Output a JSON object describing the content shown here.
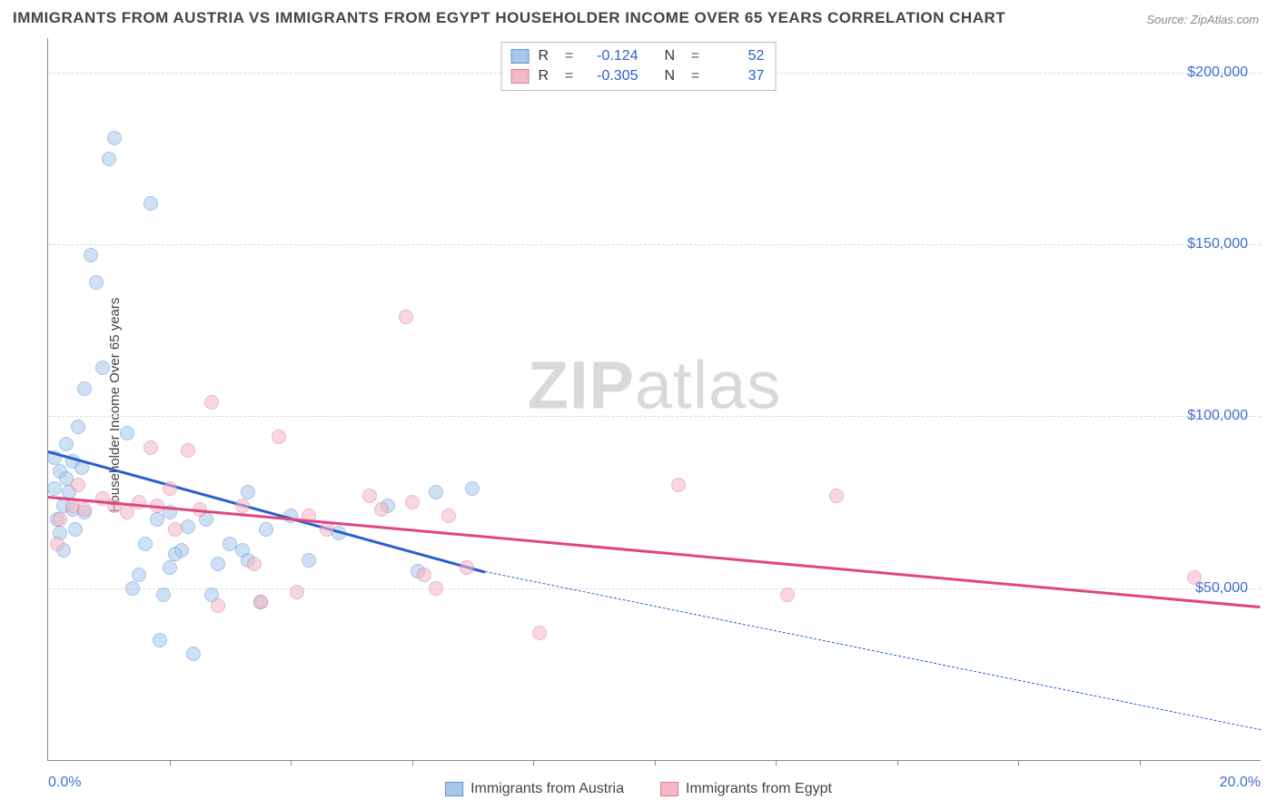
{
  "title": "IMMIGRANTS FROM AUSTRIA VS IMMIGRANTS FROM EGYPT HOUSEHOLDER INCOME OVER 65 YEARS CORRELATION CHART",
  "source": "Source: ZipAtlas.com",
  "watermark_a": "ZIP",
  "watermark_b": "atlas",
  "y_axis_label": "Householder Income Over 65 years",
  "chart": {
    "type": "scatter",
    "xlim": [
      0,
      20
    ],
    "ylim": [
      0,
      210000
    ],
    "x_ticks_minor": [
      2,
      4,
      6,
      8,
      10,
      12,
      14,
      16,
      18
    ],
    "x_tick_labels": [
      {
        "v": 0,
        "label": "0.0%"
      },
      {
        "v": 20,
        "label": "20.0%"
      }
    ],
    "y_gridlines": [
      50000,
      100000,
      150000,
      200000
    ],
    "y_tick_labels": [
      {
        "v": 50000,
        "label": "$50,000"
      },
      {
        "v": 100000,
        "label": "$100,000"
      },
      {
        "v": 150000,
        "label": "$150,000"
      },
      {
        "v": 200000,
        "label": "$200,000"
      }
    ],
    "background_color": "#ffffff",
    "grid_color": "#d8d8d8",
    "axis_color": "#888888",
    "marker_radius": 8,
    "marker_opacity": 0.55,
    "series": [
      {
        "name": "Immigrants from Austria",
        "color_fill": "#a7c7ec",
        "color_stroke": "#5f95d6",
        "trend_color": "#2a5fd0",
        "trend_width": 3,
        "trend": {
          "x1": 0,
          "y1": 90000,
          "x2": 7.2,
          "y2": 55000,
          "extend_dashed_to_x": 20,
          "extend_dashed_to_y": 9000
        },
        "R": "-0.124",
        "N": "52",
        "points": [
          [
            0.1,
            88000
          ],
          [
            0.1,
            79000
          ],
          [
            0.15,
            70000
          ],
          [
            0.2,
            66000
          ],
          [
            0.2,
            84000
          ],
          [
            0.25,
            74000
          ],
          [
            0.25,
            61000
          ],
          [
            0.3,
            92000
          ],
          [
            0.3,
            82000
          ],
          [
            0.35,
            78000
          ],
          [
            0.4,
            73000
          ],
          [
            0.4,
            87000
          ],
          [
            0.45,
            67000
          ],
          [
            0.5,
            97000
          ],
          [
            0.55,
            85000
          ],
          [
            0.6,
            72000
          ],
          [
            0.6,
            108000
          ],
          [
            0.7,
            147000
          ],
          [
            0.8,
            139000
          ],
          [
            0.9,
            114000
          ],
          [
            1.0,
            175000
          ],
          [
            1.1,
            181000
          ],
          [
            1.3,
            95000
          ],
          [
            1.4,
            50000
          ],
          [
            1.5,
            54000
          ],
          [
            1.6,
            63000
          ],
          [
            1.7,
            162000
          ],
          [
            1.8,
            70000
          ],
          [
            1.85,
            35000
          ],
          [
            1.9,
            48000
          ],
          [
            2.0,
            56000
          ],
          [
            2.0,
            72000
          ],
          [
            2.1,
            60000
          ],
          [
            2.2,
            61000
          ],
          [
            2.3,
            68000
          ],
          [
            2.4,
            31000
          ],
          [
            2.6,
            70000
          ],
          [
            2.7,
            48000
          ],
          [
            2.8,
            57000
          ],
          [
            3.0,
            63000
          ],
          [
            3.2,
            61000
          ],
          [
            3.3,
            78000
          ],
          [
            3.3,
            58000
          ],
          [
            3.5,
            46000
          ],
          [
            3.6,
            67000
          ],
          [
            4.0,
            71000
          ],
          [
            4.3,
            58000
          ],
          [
            4.8,
            66000
          ],
          [
            5.6,
            74000
          ],
          [
            6.1,
            55000
          ],
          [
            6.4,
            78000
          ],
          [
            7.0,
            79000
          ]
        ]
      },
      {
        "name": "Immigrants from Egypt",
        "color_fill": "#f4b8c6",
        "color_stroke": "#e278a0",
        "trend_color": "#e0457e",
        "trend_width": 2.5,
        "trend": {
          "x1": 0,
          "y1": 77000,
          "x2": 20,
          "y2": 45000
        },
        "R": "-0.305",
        "N": "37",
        "points": [
          [
            0.15,
            63000
          ],
          [
            0.2,
            70000
          ],
          [
            0.4,
            74000
          ],
          [
            0.5,
            80000
          ],
          [
            0.6,
            73000
          ],
          [
            0.9,
            76000
          ],
          [
            1.1,
            74000
          ],
          [
            1.3,
            72000
          ],
          [
            1.5,
            75000
          ],
          [
            1.7,
            91000
          ],
          [
            1.8,
            74000
          ],
          [
            2.0,
            79000
          ],
          [
            2.1,
            67000
          ],
          [
            2.3,
            90000
          ],
          [
            2.5,
            73000
          ],
          [
            2.7,
            104000
          ],
          [
            2.8,
            45000
          ],
          [
            3.2,
            74000
          ],
          [
            3.4,
            57000
          ],
          [
            3.5,
            46000
          ],
          [
            3.8,
            94000
          ],
          [
            4.1,
            49000
          ],
          [
            4.3,
            71000
          ],
          [
            4.6,
            67000
          ],
          [
            5.3,
            77000
          ],
          [
            5.5,
            73000
          ],
          [
            5.9,
            129000
          ],
          [
            6.2,
            54000
          ],
          [
            6.4,
            50000
          ],
          [
            6.6,
            71000
          ],
          [
            6.9,
            56000
          ],
          [
            8.1,
            37000
          ],
          [
            10.4,
            80000
          ],
          [
            12.2,
            48000
          ],
          [
            13.0,
            77000
          ],
          [
            18.9,
            53000
          ],
          [
            6.0,
            75000
          ]
        ]
      }
    ]
  },
  "legend_top": {
    "r_label": "R",
    "n_label": "N",
    "eq": "="
  },
  "legend_bottom": {
    "series1": "Immigrants from Austria",
    "series2": "Immigrants from Egypt"
  }
}
